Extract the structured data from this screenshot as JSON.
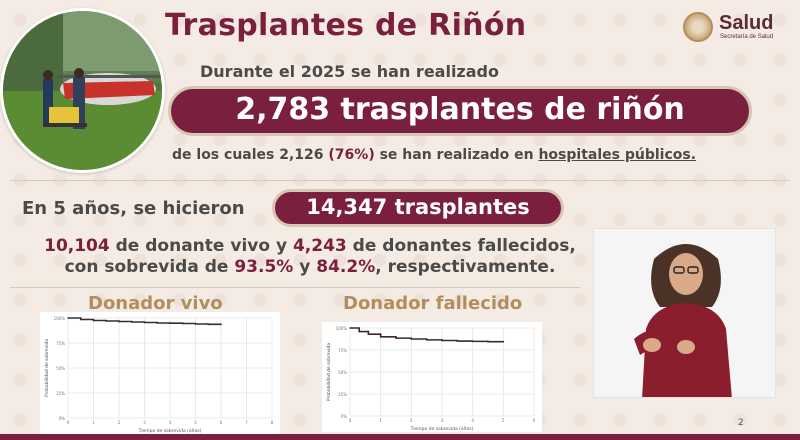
{
  "title": "Trasplantes de Riñón",
  "logo": {
    "name": "Salud",
    "subtitle": "Secretaría de Salud"
  },
  "intro": "Durante el 2025 se han realizado",
  "total_pill": "2,783 trasplantes de riñón",
  "public": {
    "prefix": "de los cuales",
    "count": "2,126",
    "pct": "(76%)",
    "middle": "se han realizado en",
    "place": "hospitales públicos."
  },
  "five_years": {
    "label": "En 5 años, se hicieron",
    "pill": "14,347 trasplantes"
  },
  "detail": {
    "living": "10,104",
    "t1": "de donante vivo y",
    "deceased": "4,243",
    "t2": "de donantes fallecidos,",
    "t3": "con sobrevida de",
    "living_surv": "93.5%",
    "t4": "y",
    "deceased_surv": "84.2%",
    "t5": ", respectivamente."
  },
  "page_number": "2",
  "colors": {
    "maroon": "#7a1f3d",
    "gold": "#b38e5d",
    "background": "#f4ece4"
  },
  "chart_data": [
    {
      "type": "line",
      "title": "Donador vivo",
      "xlabel": "Tiempo de sobrevida (años)",
      "ylabel": "Probabilidad de sobrevida",
      "x_ticks": [
        "0",
        "1",
        "2",
        "3",
        "4",
        "5",
        "6",
        "7",
        "8"
      ],
      "y_ticks": [
        "0%",
        "25%",
        "50%",
        "75%",
        "100%"
      ],
      "xlim": [
        0,
        8
      ],
      "ylim": [
        0,
        100
      ],
      "grid": true,
      "series": [
        {
          "x": [
            0,
            0.5,
            1,
            1.5,
            2,
            2.5,
            3,
            3.5,
            4,
            4.5,
            5,
            5.5,
            6
          ],
          "y": [
            100,
            98.5,
            97.5,
            97,
            96.5,
            96,
            95.5,
            95,
            94.8,
            94.5,
            94,
            93.7,
            93.5
          ]
        }
      ]
    },
    {
      "type": "line",
      "title": "Donador fallecido",
      "xlabel": "Tiempo de sobrevida (años)",
      "ylabel": "Probabilidad de sobrevida",
      "x_ticks": [
        "0",
        "1",
        "2",
        "3",
        "4",
        "5",
        "6"
      ],
      "y_ticks": [
        "0%",
        "25%",
        "50%",
        "75%",
        "100%"
      ],
      "xlim": [
        0,
        6
      ],
      "ylim": [
        0,
        100
      ],
      "grid": true,
      "series": [
        {
          "x": [
            0,
            0.3,
            0.6,
            1,
            1.5,
            2,
            2.5,
            3,
            3.5,
            4,
            4.5,
            5
          ],
          "y": [
            100,
            96,
            93,
            90,
            88.5,
            87.5,
            86.5,
            85.8,
            85.2,
            84.8,
            84.5,
            84.2
          ]
        }
      ]
    }
  ]
}
